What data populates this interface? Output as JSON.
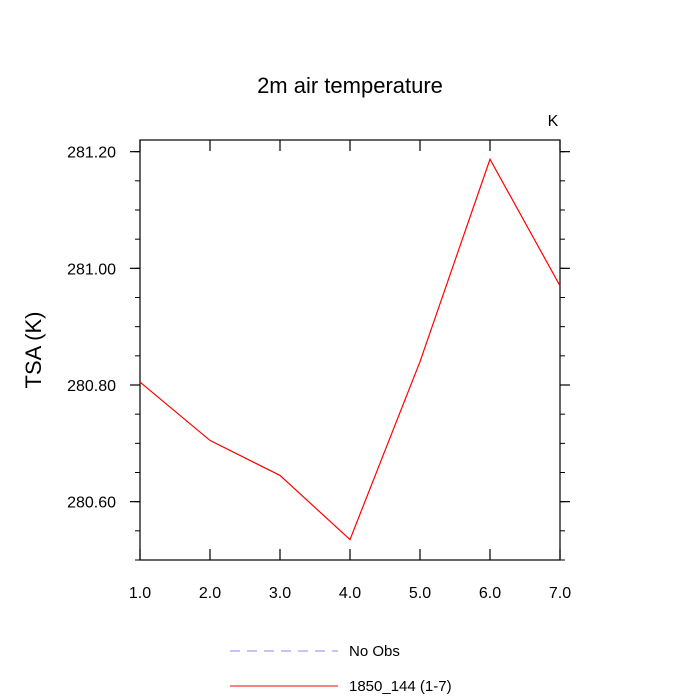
{
  "chart_data": {
    "type": "line",
    "title": "2m air temperature",
    "ylabel": "TSA  (K)",
    "xlabel": "",
    "units_label": "K",
    "xlim": [
      1.0,
      7.0
    ],
    "ylim": [
      280.5,
      281.22
    ],
    "x_ticks": [
      1.0,
      2.0,
      3.0,
      4.0,
      5.0,
      6.0,
      7.0
    ],
    "x_tick_labels": [
      "1.0",
      "2.0",
      "3.0",
      "4.0",
      "5.0",
      "6.0",
      "7.0"
    ],
    "y_ticks": [
      280.6,
      280.8,
      281.0,
      281.2
    ],
    "y_tick_labels": [
      "280.60",
      "280.80",
      "281.00",
      "281.20"
    ],
    "y_minor_step": 0.05,
    "x": [
      1.0,
      2.0,
      3.0,
      4.0,
      5.0,
      6.0,
      7.0
    ],
    "series": [
      {
        "name": "1850_144 (1-7)",
        "color": "#ff0000",
        "dash": "solid",
        "values": [
          280.805,
          280.705,
          280.645,
          280.535,
          280.84,
          281.187,
          280.97
        ]
      }
    ],
    "legend": [
      {
        "label": "No Obs",
        "color": "#8888ee",
        "dash": "dashed"
      },
      {
        "label": "1850_144 (1-7)",
        "color": "#ff0000",
        "dash": "solid"
      }
    ],
    "legend_position": "bottom-center",
    "grid": false
  }
}
